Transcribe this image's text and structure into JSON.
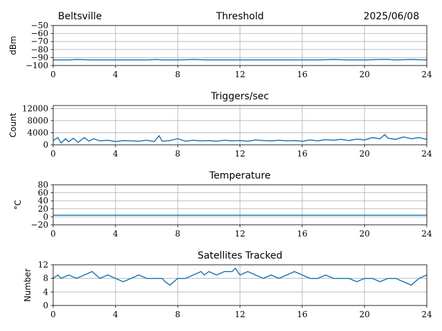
{
  "header": {
    "station": "Beltsville",
    "date": "2025/06/08"
  },
  "chart_data": [
    {
      "type": "line",
      "title": "Threshold",
      "xlabel": "",
      "ylabel": "dBm",
      "xlim": [
        0,
        24
      ],
      "ylim": [
        -100,
        -50
      ],
      "xticks": [
        "0",
        "4",
        "8",
        "12",
        "16",
        "20",
        "24"
      ],
      "yticks": [
        "−50",
        "−60",
        "−70",
        "−80",
        "−90",
        "−100"
      ],
      "grid": true,
      "color": "#1f77b4",
      "x": [
        0,
        1.0,
        1.5,
        2.5,
        3.0,
        4.0,
        5.0,
        6.0,
        6.7,
        7.0,
        8.0,
        9.0,
        10.0,
        11.0,
        12.0,
        13.0,
        14.0,
        15.0,
        16.0,
        17.0,
        18.0,
        19.0,
        20.0,
        21.0,
        21.5,
        22.0,
        23.0,
        24.0
      ],
      "y": [
        -93,
        -93,
        -92.5,
        -93,
        -93,
        -93,
        -93,
        -93,
        -92.5,
        -93,
        -93,
        -92.5,
        -93,
        -93,
        -93,
        -93,
        -93,
        -93,
        -93,
        -93,
        -92.5,
        -93,
        -93,
        -92.5,
        -92.5,
        -93,
        -92.5,
        -93
      ]
    },
    {
      "type": "line",
      "title": "Triggers/sec",
      "xlabel": "",
      "ylabel": "Count",
      "xlim": [
        0,
        24
      ],
      "ylim": [
        0,
        13000
      ],
      "xticks": [
        "0",
        "4",
        "8",
        "12",
        "16",
        "20",
        "24"
      ],
      "yticks": [
        "0",
        "4000",
        "8000",
        "12000"
      ],
      "grid": true,
      "color": "#1f77b4",
      "x": [
        0,
        0.3,
        0.5,
        0.8,
        1.0,
        1.3,
        1.6,
        2.0,
        2.3,
        2.6,
        3.0,
        3.5,
        4.0,
        4.5,
        5.0,
        5.5,
        6.0,
        6.5,
        6.8,
        7.0,
        7.5,
        8.0,
        8.5,
        9.0,
        9.5,
        10.0,
        10.5,
        11.0,
        11.5,
        12.0,
        12.5,
        13.0,
        13.5,
        14.0,
        14.5,
        15.0,
        15.5,
        16.0,
        16.5,
        17.0,
        17.5,
        18.0,
        18.5,
        19.0,
        19.5,
        20.0,
        20.5,
        21.0,
        21.3,
        21.5,
        22.0,
        22.5,
        23.0,
        23.5,
        24.0
      ],
      "y": [
        1400,
        2400,
        600,
        2000,
        1000,
        2200,
        800,
        2400,
        1200,
        2000,
        1300,
        1500,
        1100,
        1400,
        1300,
        1200,
        1500,
        1100,
        3000,
        1200,
        1400,
        2000,
        1200,
        1500,
        1300,
        1400,
        1200,
        1500,
        1300,
        1400,
        1200,
        1600,
        1400,
        1300,
        1500,
        1300,
        1400,
        1200,
        1600,
        1300,
        1700,
        1500,
        1800,
        1400,
        1900,
        1600,
        2400,
        2000,
        3400,
        2200,
        1800,
        2600,
        2000,
        2400,
        1800
      ]
    },
    {
      "type": "line",
      "title": "Temperature",
      "xlabel": "",
      "ylabel": "°C",
      "xlim": [
        0,
        24
      ],
      "ylim": [
        -20,
        80
      ],
      "xticks": [
        "0",
        "4",
        "8",
        "12",
        "16",
        "20",
        "24"
      ],
      "yticks": [
        "−20",
        "0",
        "20",
        "40",
        "60",
        "80"
      ],
      "grid": true,
      "color": "#1f77b4",
      "x": [
        0,
        4,
        8,
        12,
        16,
        20,
        24
      ],
      "y": [
        4,
        4,
        4,
        4,
        4,
        4,
        4
      ]
    },
    {
      "type": "line",
      "title": "Satellites Tracked",
      "xlabel": "",
      "ylabel": "Number",
      "xlim": [
        0,
        24
      ],
      "ylim": [
        0,
        12
      ],
      "xticks": [
        "0",
        "4",
        "8",
        "12",
        "16",
        "20",
        "24"
      ],
      "yticks": [
        "0",
        "4",
        "8",
        "12"
      ],
      "grid": true,
      "color": "#1f77b4",
      "x": [
        0,
        0.3,
        0.5,
        1.0,
        1.5,
        2.0,
        2.5,
        3.0,
        3.5,
        4.0,
        4.5,
        5.0,
        5.5,
        6.0,
        6.5,
        7.0,
        7.2,
        7.5,
        8.0,
        8.5,
        9.0,
        9.5,
        9.7,
        10.0,
        10.5,
        11.0,
        11.5,
        11.7,
        12.0,
        12.5,
        13.0,
        13.5,
        14.0,
        14.5,
        15.0,
        15.5,
        16.0,
        16.5,
        17.0,
        17.5,
        18.0,
        18.5,
        19.0,
        19.5,
        20.0,
        20.5,
        21.0,
        21.5,
        22.0,
        22.5,
        23.0,
        23.5,
        24.0
      ],
      "y": [
        8,
        9,
        8,
        9,
        8,
        9,
        10,
        8,
        9,
        8,
        7,
        8,
        9,
        8,
        8,
        8,
        7,
        6,
        8,
        8,
        9,
        10,
        9,
        10,
        9,
        10,
        10,
        11,
        9,
        10,
        9,
        8,
        9,
        8,
        9,
        10,
        9,
        8,
        8,
        9,
        8,
        8,
        8,
        7,
        8,
        8,
        7,
        8,
        8,
        7,
        6,
        8,
        9
      ]
    }
  ]
}
